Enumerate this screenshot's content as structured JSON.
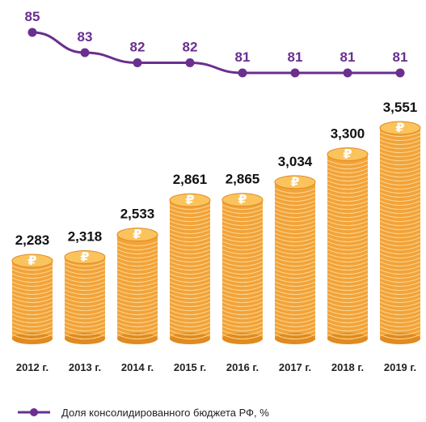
{
  "chart_data": [
    {
      "type": "line",
      "x": [
        "2012 г.",
        "2013 г.",
        "2014 г.",
        "2015 г.",
        "2016 г.",
        "2017 г.",
        "2018 г.",
        "2019 г."
      ],
      "values": [
        85,
        83,
        82,
        82,
        81,
        81,
        81,
        81
      ],
      "data_labels": [
        "85",
        "83",
        "82",
        "82",
        "81",
        "81",
        "81",
        "81"
      ],
      "series_name": "Доля консолидированного бюджета РФ, %",
      "legend": "bottom-left"
    },
    {
      "type": "bar",
      "categories": [
        "2012 г.",
        "2013 г.",
        "2014 г.",
        "2015 г.",
        "2016 г.",
        "2017 г.",
        "2018 г.",
        "2019 г."
      ],
      "values": [
        2.283,
        2.318,
        2.533,
        2.861,
        2.865,
        3.034,
        3.3,
        3.551
      ],
      "data_labels": [
        "2,283",
        "2,318",
        "2,533",
        "2,861",
        "2,865",
        "3,034",
        "3,300",
        "3,551"
      ],
      "bar_style": "coin-stacks",
      "coin_symbol": "₽"
    }
  ],
  "colors": {
    "line": "#6a2f8f",
    "coin_body": "#f2a33a",
    "coin_top": "#fbc35c",
    "coin_edge": "#e08a20",
    "coin_stripe": "#fbd38a"
  }
}
